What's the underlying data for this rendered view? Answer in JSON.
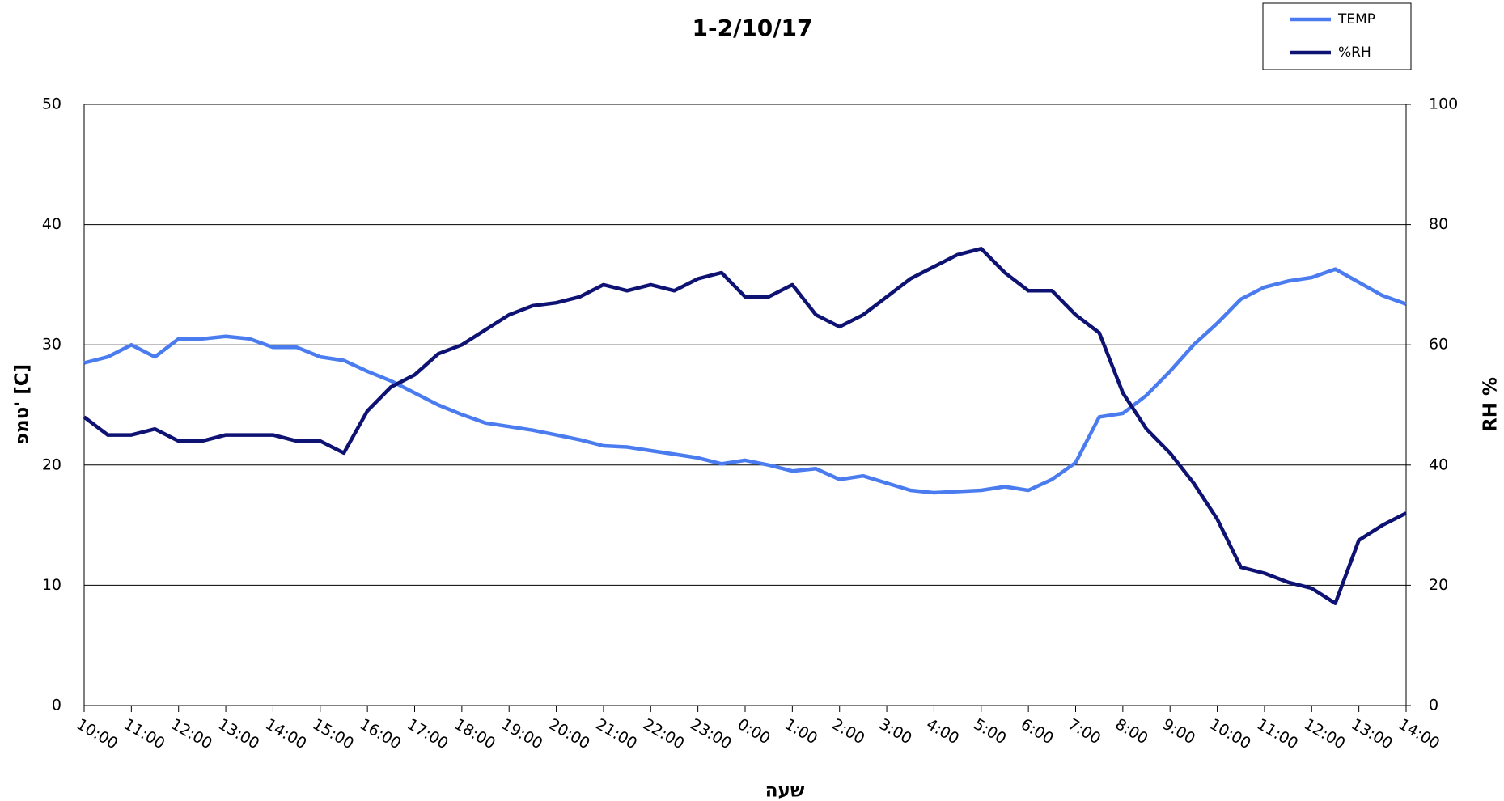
{
  "chart_data": {
    "type": "line",
    "title": "1-2/10/17",
    "x_label": "שעה",
    "y_label": "טמפ' [C]",
    "y2_label": "RH %",
    "x": [
      0,
      0.5,
      1,
      1.5,
      2,
      2.5,
      3,
      3.5,
      4,
      4.5,
      5,
      5.5,
      6,
      6.5,
      7,
      7.5,
      8,
      8.5,
      9,
      9.5,
      10,
      10.5,
      11,
      11.5,
      12,
      12.5,
      13,
      13.5,
      14,
      14.5,
      15,
      15.5,
      16,
      16.5,
      17,
      17.5,
      18,
      18.5,
      19,
      19.5,
      20,
      20.5,
      21,
      21.5,
      22,
      22.5,
      23,
      23.5,
      24,
      24.5,
      25,
      25.5,
      26,
      26.5,
      27,
      27.5,
      28
    ],
    "xlim": [
      0,
      28
    ],
    "xticks": [
      {
        "value": 0,
        "label": "10:00"
      },
      {
        "value": 1,
        "label": "11:00"
      },
      {
        "value": 2,
        "label": "12:00"
      },
      {
        "value": 3,
        "label": "13:00"
      },
      {
        "value": 4,
        "label": "14:00"
      },
      {
        "value": 5,
        "label": "15:00"
      },
      {
        "value": 6,
        "label": "16:00"
      },
      {
        "value": 7,
        "label": "17:00"
      },
      {
        "value": 8,
        "label": "18:00"
      },
      {
        "value": 9,
        "label": "19:00"
      },
      {
        "value": 10,
        "label": "20:00"
      },
      {
        "value": 11,
        "label": "21:00"
      },
      {
        "value": 12,
        "label": "22:00"
      },
      {
        "value": 13,
        "label": "23:00"
      },
      {
        "value": 14,
        "label": "0:00"
      },
      {
        "value": 15,
        "label": "1:00"
      },
      {
        "value": 16,
        "label": "2:00"
      },
      {
        "value": 17,
        "label": "3:00"
      },
      {
        "value": 18,
        "label": "4:00"
      },
      {
        "value": 19,
        "label": "5:00"
      },
      {
        "value": 20,
        "label": "6:00"
      },
      {
        "value": 21,
        "label": "7:00"
      },
      {
        "value": 22,
        "label": "8:00"
      },
      {
        "value": 23,
        "label": "9:00"
      },
      {
        "value": 24,
        "label": "10:00"
      },
      {
        "value": 25,
        "label": "11:00"
      },
      {
        "value": 26,
        "label": "12:00"
      },
      {
        "value": 27,
        "label": "13:00"
      },
      {
        "value": 28,
        "label": "14:00"
      }
    ],
    "ylim": [
      0,
      50
    ],
    "yticks": [
      0,
      10,
      20,
      30,
      40,
      50
    ],
    "y2lim": [
      0,
      100
    ],
    "y2ticks": [
      0,
      20,
      40,
      60,
      80,
      100
    ],
    "grid": true,
    "legend": "top-right",
    "series": [
      {
        "name": "TEMP",
        "color": "#4a7cf0",
        "values": [
          28.5,
          29,
          30,
          29,
          30.5,
          30.5,
          30.7,
          30.5,
          29.8,
          29.8,
          29,
          28.7,
          27.8,
          27,
          26,
          25,
          24.2,
          23.5,
          23.2,
          22.9,
          22.5,
          22.1,
          21.6,
          21.5,
          21.2,
          20.9,
          20.6,
          20.1,
          20.4,
          20,
          19.5,
          19.7,
          18.8,
          19.1,
          18.5,
          17.9,
          17.7,
          17.8,
          17.9,
          18.2,
          17.9,
          18.8,
          20.2,
          24,
          24.3,
          25.8,
          27.8,
          30,
          31.8,
          33.8,
          34.8,
          35.3,
          35.6,
          36.3,
          35.2,
          34.1,
          33.4
        ]
      },
      {
        "name": "%RH",
        "color": "#0d1273",
        "axis": "y2",
        "values": [
          48,
          45,
          45,
          46,
          44,
          44,
          45,
          45,
          45,
          44,
          44,
          42,
          49,
          53,
          55,
          58.5,
          60,
          62.5,
          65,
          66.5,
          67,
          68,
          70,
          69,
          70,
          69,
          71,
          72,
          68,
          68,
          70,
          65,
          63,
          65,
          68,
          71,
          73,
          75,
          76,
          72,
          69,
          69,
          65,
          62,
          52,
          46,
          42,
          37,
          31,
          23,
          22,
          20.5,
          19.5,
          17,
          27.5,
          30,
          32
        ]
      }
    ]
  }
}
